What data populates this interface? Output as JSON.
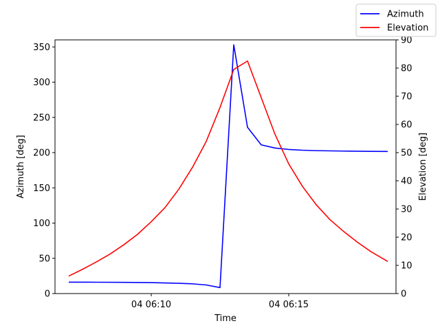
{
  "chart_data": {
    "type": "line",
    "xlabel": "Time",
    "ylabel_left": "Azimuth [deg]",
    "ylabel_right": "Elevation [deg]",
    "x_unit": "minutes past 04 06:00",
    "x_ticks": [
      {
        "value": 10,
        "label": "04 06:10"
      },
      {
        "value": 15,
        "label": "04 06:15"
      }
    ],
    "xlim": [
      6.5,
      18.9
    ],
    "ylim_left": [
      0,
      360
    ],
    "ylim_right": [
      0,
      90
    ],
    "yticks_left": [
      0,
      50,
      100,
      150,
      200,
      250,
      300,
      350
    ],
    "yticks_right": [
      0,
      10,
      20,
      30,
      40,
      50,
      60,
      70,
      80,
      90
    ],
    "legend_position": "top-right",
    "series": [
      {
        "name": "Azimuth",
        "axis": "left",
        "color": "#0000ff",
        "x": [
          7.0,
          8.0,
          9.0,
          10.0,
          10.5,
          11.0,
          11.5,
          12.0,
          12.5,
          13.0,
          13.5,
          14.0,
          14.5,
          15.0,
          15.5,
          16.0,
          17.0,
          18.0,
          18.6
        ],
        "y": [
          16.2,
          16.1,
          15.9,
          15.5,
          15.1,
          14.6,
          13.8,
          12.2,
          8.5,
          353.0,
          236.0,
          211.0,
          206.5,
          204.5,
          203.4,
          202.8,
          202.2,
          201.8,
          201.6
        ]
      },
      {
        "name": "Elevation",
        "axis": "right",
        "color": "#ff0000",
        "x": [
          7.0,
          7.5,
          8.0,
          8.5,
          9.0,
          9.5,
          10.0,
          10.5,
          11.0,
          11.5,
          12.0,
          12.5,
          13.0,
          13.5,
          14.0,
          14.5,
          15.0,
          15.5,
          16.0,
          16.5,
          17.0,
          17.5,
          18.0,
          18.6
        ],
        "y": [
          6.2,
          8.6,
          11.2,
          14.0,
          17.3,
          21.0,
          25.5,
          30.5,
          37.0,
          44.8,
          54.0,
          66.0,
          79.5,
          82.5,
          69.5,
          56.5,
          46.0,
          38.0,
          31.5,
          26.2,
          22.0,
          18.2,
          14.8,
          11.4
        ]
      }
    ]
  }
}
